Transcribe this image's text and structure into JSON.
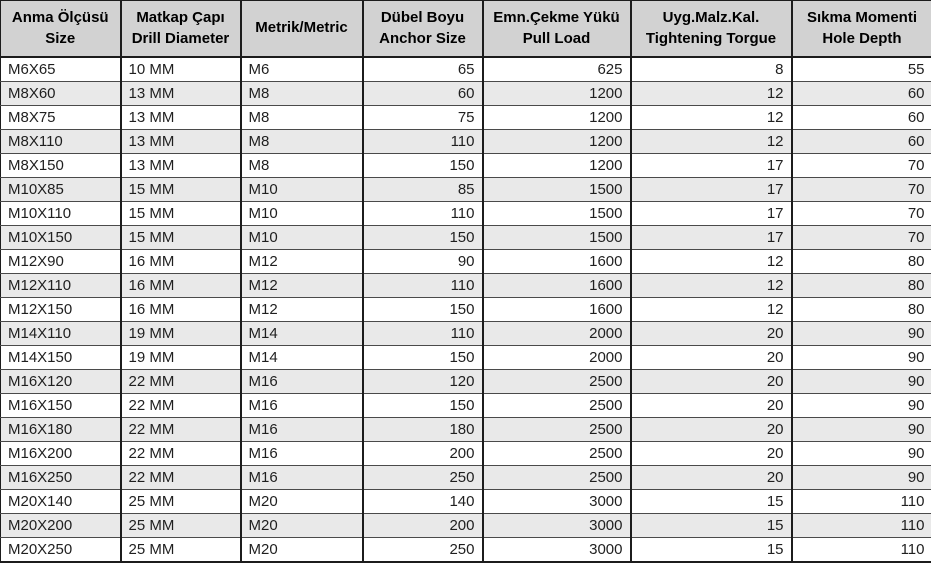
{
  "table": {
    "columns": [
      {
        "line1": "Anma Ölçüsü",
        "line2": "Size",
        "align": "left"
      },
      {
        "line1": "Matkap Çapı",
        "line2": "Drill Diameter",
        "align": "left"
      },
      {
        "line1": "Metrik/Metric",
        "line2": "",
        "align": "left"
      },
      {
        "line1": "Dübel Boyu",
        "line2": "Anchor Size",
        "align": "right"
      },
      {
        "line1": "Emn.Çekme Yükü",
        "line2": "Pull Load",
        "align": "right"
      },
      {
        "line1": "Uyg.Malz.Kal.",
        "line2": "Tightening Torgue",
        "align": "right"
      },
      {
        "line1": "Sıkma Momenti",
        "line2": "Hole Depth",
        "align": "right"
      }
    ],
    "rows": [
      [
        "M6X65",
        "10 MM",
        "M6",
        "65",
        "625",
        "8",
        "55"
      ],
      [
        "M8X60",
        "13 MM",
        "M8",
        "60",
        "1200",
        "12",
        "60"
      ],
      [
        "M8X75",
        "13 MM",
        "M8",
        "75",
        "1200",
        "12",
        "60"
      ],
      [
        "M8X110",
        "13 MM",
        "M8",
        "110",
        "1200",
        "12",
        "60"
      ],
      [
        "M8X150",
        "13 MM",
        "M8",
        "150",
        "1200",
        "17",
        "70"
      ],
      [
        "M10X85",
        "15 MM",
        "M10",
        "85",
        "1500",
        "17",
        "70"
      ],
      [
        "M10X110",
        "15 MM",
        "M10",
        "110",
        "1500",
        "17",
        "70"
      ],
      [
        "M10X150",
        "15 MM",
        "M10",
        "150",
        "1500",
        "17",
        "70"
      ],
      [
        "M12X90",
        "16 MM",
        "M12",
        "90",
        "1600",
        "12",
        "80"
      ],
      [
        "M12X110",
        "16 MM",
        "M12",
        "110",
        "1600",
        "12",
        "80"
      ],
      [
        "M12X150",
        "16 MM",
        "M12",
        "150",
        "1600",
        "12",
        "80"
      ],
      [
        "M14X110",
        "19 MM",
        "M14",
        "110",
        "2000",
        "20",
        "90"
      ],
      [
        "M14X150",
        "19 MM",
        "M14",
        "150",
        "2000",
        "20",
        "90"
      ],
      [
        "M16X120",
        "22 MM",
        "M16",
        "120",
        "2500",
        "20",
        "90"
      ],
      [
        "M16X150",
        "22 MM",
        "M16",
        "150",
        "2500",
        "20",
        "90"
      ],
      [
        "M16X180",
        "22 MM",
        "M16",
        "180",
        "2500",
        "20",
        "90"
      ],
      [
        "M16X200",
        "22 MM",
        "M16",
        "200",
        "2500",
        "20",
        "90"
      ],
      [
        "M16X250",
        "22 MM",
        "M16",
        "250",
        "2500",
        "20",
        "90"
      ],
      [
        "M20X140",
        "25 MM",
        "M20",
        "140",
        "3000",
        "15",
        "110"
      ],
      [
        "M20X200",
        "25 MM",
        "M20",
        "200",
        "3000",
        "15",
        "110"
      ],
      [
        "M20X250",
        "25 MM",
        "M20",
        "250",
        "3000",
        "15",
        "110"
      ]
    ]
  },
  "colors": {
    "header_bg": "#d2d2d2",
    "row_bg": "#ffffff",
    "row_alt_bg": "#e9e9e9",
    "border_heavy": "#1c1c1c",
    "border_light": "#4a4a4a",
    "text": "#1f1f1f"
  }
}
